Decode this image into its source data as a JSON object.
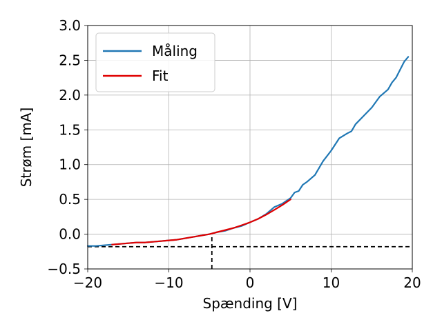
{
  "chart_data": {
    "type": "line",
    "title": "",
    "xlabel": "Spænding [V]",
    "ylabel": "Strøm [mA]",
    "xlim": [
      -20,
      20
    ],
    "ylim": [
      -0.5,
      3.0
    ],
    "grid": true,
    "legend_position": "top-left",
    "xticks": [
      -20,
      -10,
      0,
      10,
      20
    ],
    "xtick_labels": [
      "−20",
      "−10",
      "0",
      "10",
      "20"
    ],
    "yticks": [
      -0.5,
      0.0,
      0.5,
      1.0,
      1.5,
      2.0,
      2.5,
      3.0
    ],
    "ytick_labels": [
      "−0.5",
      "0.0",
      "0.5",
      "1.0",
      "1.5",
      "2.0",
      "2.5",
      "3.0"
    ],
    "series": [
      {
        "name": "Måling",
        "color": "#1f77b4",
        "x": [
          -20,
          -19,
          -18,
          -17,
          -16,
          -15,
          -14,
          -13,
          -12,
          -11,
          -10,
          -9,
          -8,
          -7,
          -6,
          -5,
          -4,
          -3,
          -2,
          -1,
          0,
          1,
          2,
          3,
          4,
          5,
          5.5,
          6,
          6.5,
          7,
          8,
          9,
          10,
          11,
          12,
          12.5,
          13,
          14,
          15,
          16,
          17,
          17.5,
          18,
          19,
          19.5
        ],
        "y": [
          -0.17,
          -0.17,
          -0.16,
          -0.15,
          -0.14,
          -0.13,
          -0.12,
          -0.12,
          -0.11,
          -0.1,
          -0.09,
          -0.08,
          -0.06,
          -0.04,
          -0.02,
          0.0,
          0.03,
          0.05,
          0.09,
          0.12,
          0.17,
          0.22,
          0.29,
          0.39,
          0.44,
          0.52,
          0.6,
          0.62,
          0.71,
          0.75,
          0.85,
          1.05,
          1.2,
          1.38,
          1.45,
          1.48,
          1.58,
          1.7,
          1.82,
          1.98,
          2.08,
          2.18,
          2.25,
          2.48,
          2.55
        ]
      },
      {
        "name": "Fit",
        "color": "#e00000",
        "x": [
          -17,
          -16,
          -15,
          -14,
          -13,
          -12,
          -11,
          -10,
          -9,
          -8,
          -7,
          -6,
          -5,
          -4,
          -3,
          -2,
          -1,
          0,
          1,
          2,
          3,
          4,
          5
        ],
        "y": [
          -0.15,
          -0.14,
          -0.13,
          -0.12,
          -0.12,
          -0.11,
          -0.1,
          -0.09,
          -0.08,
          -0.06,
          -0.04,
          -0.02,
          0.0,
          0.03,
          0.06,
          0.09,
          0.13,
          0.17,
          0.22,
          0.28,
          0.35,
          0.42,
          0.5
        ]
      }
    ],
    "reference_lines": [
      {
        "orientation": "horizontal",
        "value": -0.18,
        "style": "dashed",
        "color": "#000000",
        "from": -20,
        "to": 20
      },
      {
        "orientation": "vertical",
        "value": -4.7,
        "style": "dashed",
        "color": "#000000",
        "from": -0.5,
        "to": 0.0
      }
    ]
  }
}
